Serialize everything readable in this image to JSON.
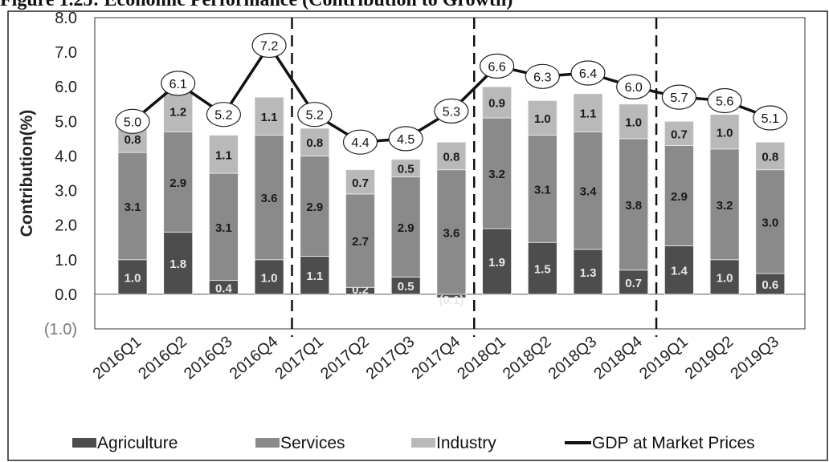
{
  "figure_title": "Figure 1.25: Economic Performance (Contribution to Growth)",
  "chart_data": {
    "type": "bar",
    "stacked": true,
    "categories": [
      "2016Q1",
      "2016Q2",
      "2016Q3",
      "2016Q4",
      "2017Q1",
      "2017Q2",
      "2017Q3",
      "2017Q4",
      "2018Q1",
      "2018Q2",
      "2018Q3",
      "2018Q4",
      "2019Q1",
      "2019Q2",
      "2019Q3"
    ],
    "series": [
      {
        "name": "Agriculture",
        "color": "#4d4d4d",
        "values": [
          1.0,
          1.8,
          0.4,
          1.0,
          1.1,
          0.2,
          0.5,
          -0.1,
          1.9,
          1.5,
          1.3,
          0.7,
          1.4,
          1.0,
          0.6
        ],
        "labels": [
          "1.0",
          "1.8",
          "0.4",
          "1.0",
          "1.1",
          "0.2",
          "0.5",
          "(0.1)",
          "1.9",
          "1.5",
          "1.3",
          "0.7",
          "1.4",
          "1.0",
          "0.6"
        ]
      },
      {
        "name": "Services",
        "color": "#8a8a8a",
        "values": [
          3.1,
          2.9,
          3.1,
          3.6,
          2.9,
          2.7,
          2.9,
          3.6,
          3.2,
          3.1,
          3.4,
          3.8,
          2.9,
          3.2,
          3.0
        ],
        "labels": [
          "3.1",
          "2.9",
          "3.1",
          "3.6",
          "2.9",
          "2.7",
          "2.9",
          "3.6",
          "3.2",
          "3.1",
          "3.4",
          "3.8",
          "2.9",
          "3.2",
          "3.0"
        ]
      },
      {
        "name": "Industry",
        "color": "#b9b9b9",
        "values": [
          0.8,
          1.2,
          1.1,
          1.1,
          0.8,
          0.7,
          0.5,
          0.8,
          0.9,
          1.0,
          1.1,
          1.0,
          0.7,
          1.0,
          0.8
        ],
        "labels": [
          "0.8",
          "1.2",
          "1.1",
          "1.1",
          "0.8",
          "0.7",
          "0.5",
          "0.8",
          "0.9",
          "1.0",
          "1.1",
          "1.0",
          "0.7",
          "1.0",
          "0.8"
        ]
      }
    ],
    "line": {
      "name": "GDP at Market Prices",
      "color": "#111111",
      "values": [
        5.0,
        6.1,
        5.2,
        7.2,
        5.2,
        4.4,
        4.5,
        5.3,
        6.6,
        6.3,
        6.4,
        6.0,
        5.7,
        5.6,
        5.1
      ],
      "labels": [
        "5.0",
        "6.1",
        "5.2",
        "7.2",
        "5.2",
        "4.4",
        "4.5",
        "5.3",
        "6.6",
        "6.3",
        "6.4",
        "6.0",
        "5.7",
        "5.6",
        "5.1"
      ]
    },
    "ylabel": "Contribution(%)",
    "ylim": [
      -1.0,
      8.0
    ],
    "yticks": [
      -1.0,
      0.0,
      1.0,
      2.0,
      3.0,
      4.0,
      5.0,
      6.0,
      7.0,
      8.0
    ],
    "ytick_labels": [
      "(1.0)",
      "0.0",
      "1.0",
      "2.0",
      "3.0",
      "4.0",
      "5.0",
      "6.0",
      "7.0",
      "8.0"
    ],
    "separators_after": [
      "2016Q4",
      "2017Q4",
      "2018Q4"
    ],
    "grid": false,
    "legend_position": "bottom"
  }
}
